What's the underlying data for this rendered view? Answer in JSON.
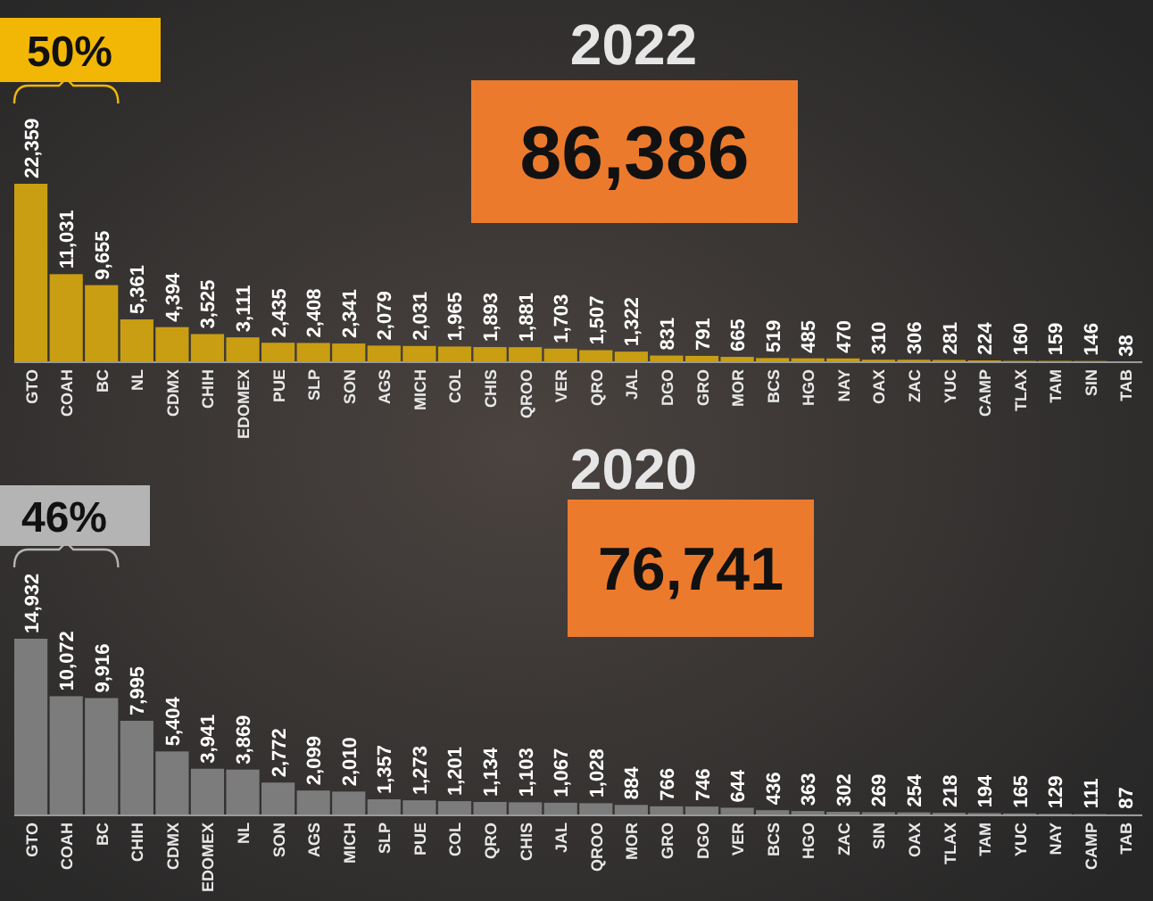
{
  "chart_data": [
    {
      "type": "bar",
      "title": "2022",
      "annotations": [
        "86,386",
        "50%"
      ],
      "categories": [
        "GTO",
        "COAH",
        "BC",
        "NL",
        "CDMX",
        "CHIH",
        "EDOMEX",
        "PUE",
        "SLP",
        "SON",
        "AGS",
        "MICH",
        "COL",
        "CHIS",
        "QROO",
        "VER",
        "QRO",
        "JAL",
        "DGO",
        "GRO",
        "MOR",
        "BCS",
        "HGO",
        "NAY",
        "OAX",
        "ZAC",
        "YUC",
        "CAMP",
        "TLAX",
        "TAM",
        "SIN",
        "TAB"
      ],
      "values": [
        22359,
        11031,
        9655,
        5361,
        4394,
        3525,
        3111,
        2435,
        2408,
        2341,
        2079,
        2031,
        1965,
        1893,
        1881,
        1703,
        1507,
        1322,
        831,
        791,
        665,
        519,
        485,
        470,
        310,
        306,
        281,
        224,
        160,
        159,
        146,
        38
      ],
      "value_labels": [
        "22,359",
        "11,031",
        "9,655",
        "5,361",
        "4,394",
        "3,525",
        "3,111",
        "2,435",
        "2,408",
        "2,341",
        "2,079",
        "2,031",
        "1,965",
        "1,893",
        "1,881",
        "1,703",
        "1,507",
        "1,322",
        "831",
        "791",
        "665",
        "519",
        "485",
        "470",
        "310",
        "306",
        "281",
        "224",
        "160",
        "159",
        "146",
        "38"
      ],
      "color": "#c99e12"
    },
    {
      "type": "bar",
      "title": "2020",
      "annotations": [
        "76,741",
        "46%"
      ],
      "categories": [
        "GTO",
        "COAH",
        "BC",
        "CHIH",
        "CDMX",
        "EDOMEX",
        "NL",
        "SON",
        "AGS",
        "MICH",
        "SLP",
        "PUE",
        "COL",
        "QRO",
        "CHIS",
        "JAL",
        "QROO",
        "MOR",
        "GRO",
        "DGO",
        "VER",
        "BCS",
        "HGO",
        "ZAC",
        "SIN",
        "OAX",
        "TLAX",
        "TAM",
        "YUC",
        "NAY",
        "CAMP",
        "TAB"
      ],
      "values": [
        14932,
        10072,
        9916,
        7995,
        5404,
        3941,
        3869,
        2772,
        2099,
        2010,
        1357,
        1273,
        1201,
        1134,
        1103,
        1067,
        1028,
        884,
        766,
        746,
        644,
        436,
        363,
        302,
        269,
        254,
        218,
        194,
        165,
        129,
        111,
        87
      ],
      "value_labels": [
        "14,932",
        "10,072",
        "9,916",
        "7,995",
        "5,404",
        "3,941",
        "3,869",
        "2,772",
        "2,099",
        "2,010",
        "1,357",
        "1,273",
        "1,201",
        "1,134",
        "1,103",
        "1,067",
        "1,028",
        "884",
        "766",
        "746",
        "644",
        "436",
        "363",
        "302",
        "269",
        "254",
        "218",
        "194",
        "165",
        "129",
        "111",
        "87"
      ],
      "color": "#7c7c7c"
    }
  ]
}
